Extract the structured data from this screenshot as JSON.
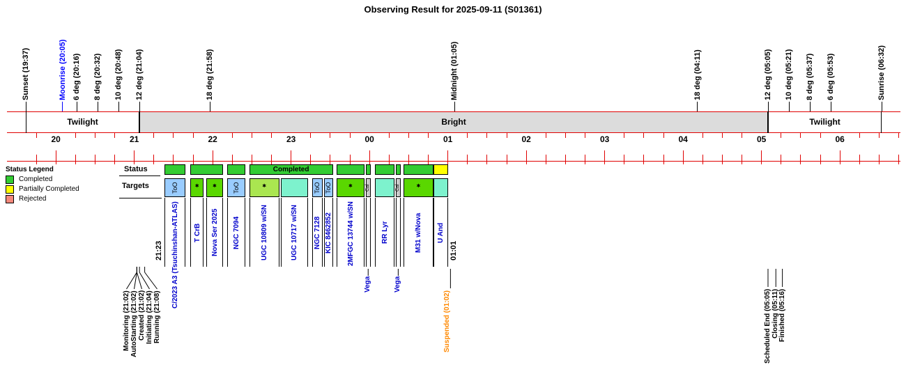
{
  "title": "Observing Result for 2025-09-11 (S01361)",
  "legend": {
    "title": "Status Legend",
    "items": [
      {
        "label": "Completed",
        "color": "#33cc33"
      },
      {
        "label": "Partially Completed",
        "color": "#ffff00"
      },
      {
        "label": "Rejected",
        "color": "#f4887b"
      }
    ]
  },
  "rows": {
    "status_label": "Status",
    "targets_label": "Targets"
  },
  "colors": {
    "ruler": "#e00000",
    "band_boundary": "#000000",
    "target_text": "#0000cc",
    "event_text": "#000000",
    "suspended_text": "#ff8800",
    "moonrise_text": "#0000ff"
  },
  "chart_data": {
    "type": "timeline",
    "time_axis": {
      "start": "19:37",
      "end": "06:32",
      "hour_labels": [
        "20",
        "21",
        "22",
        "23",
        "00",
        "01",
        "02",
        "03",
        "04",
        "05",
        "06"
      ],
      "minor_tick_minutes": 15
    },
    "sky_events": [
      {
        "label": "Sunset (19:37)",
        "time": "19:37",
        "color": "#000000"
      },
      {
        "label": "Moonrise (20:05)",
        "time": "20:05",
        "color": "#0000ff"
      },
      {
        "label": "6 deg (20:16)",
        "time": "20:16",
        "color": "#000000"
      },
      {
        "label": "8 deg (20:32)",
        "time": "20:32",
        "color": "#000000"
      },
      {
        "label": "10 deg (20:48)",
        "time": "20:48",
        "color": "#000000"
      },
      {
        "label": "12 deg (21:04)",
        "time": "21:04",
        "color": "#000000"
      },
      {
        "label": "18 deg (21:58)",
        "time": "21:58",
        "color": "#000000"
      },
      {
        "label": "Midnight (01:05)",
        "time": "01:05",
        "color": "#000000"
      },
      {
        "label": "18 deg (04:11)",
        "time": "04:11",
        "color": "#000000"
      },
      {
        "label": "12 deg (05:05)",
        "time": "05:05",
        "color": "#000000"
      },
      {
        "label": "10 deg (05:21)",
        "time": "05:21",
        "color": "#000000"
      },
      {
        "label": "8 deg (05:37)",
        "time": "05:37",
        "color": "#000000"
      },
      {
        "label": "6 deg (05:53)",
        "time": "05:53",
        "color": "#000000"
      },
      {
        "label": "Sunrise (06:32)",
        "time": "06:32",
        "color": "#000000"
      }
    ],
    "night_phases": [
      {
        "label": "Twilight",
        "start": "19:37",
        "end": "21:04",
        "fill": "#ffffff"
      },
      {
        "label": "Bright",
        "start": "21:04",
        "end": "05:05",
        "fill": "#dcdcdc"
      },
      {
        "label": "Twilight",
        "start": "05:05",
        "end": "06:32",
        "fill": "#ffffff"
      }
    ],
    "sequence": {
      "start_label": "21:23",
      "end_label": "01:01"
    },
    "status_segments": [
      {
        "start": "21:23",
        "end": "21:39",
        "color": "#33cc33",
        "label": ""
      },
      {
        "start": "21:43",
        "end": "22:08",
        "color": "#33cc33",
        "label": ""
      },
      {
        "start": "22:11",
        "end": "22:25",
        "color": "#33cc33",
        "label": ""
      },
      {
        "start": "22:28",
        "end": "23:32",
        "color": "#33cc33",
        "label": "Completed"
      },
      {
        "start": "23:35",
        "end": "23:56",
        "color": "#33cc33",
        "label": ""
      },
      {
        "start": "23:57",
        "end": "00:01",
        "color": "#33cc33",
        "label": ""
      },
      {
        "start": "00:04",
        "end": "00:19",
        "color": "#33cc33",
        "label": ""
      },
      {
        "start": "00:20",
        "end": "00:24",
        "color": "#33cc33",
        "label": ""
      },
      {
        "start": "00:26",
        "end": "00:49",
        "color": "#33cc33",
        "label": ""
      },
      {
        "start": "00:49",
        "end": "01:00",
        "color": "#ffff00",
        "label": ""
      }
    ],
    "targets": [
      {
        "name": "C/2023 A3 (Tsuchinshan-ATLAS)",
        "start": "21:23",
        "end": "21:39",
        "color": "#99ccff",
        "mark": "ToO"
      },
      {
        "name": "T CrB",
        "start": "21:43",
        "end": "21:53",
        "color": "#5ad700",
        "mark": "*"
      },
      {
        "name": "Nova Ser 2025",
        "start": "21:55",
        "end": "22:08",
        "color": "#5ad700",
        "mark": "*"
      },
      {
        "name": "NGC 7094",
        "start": "22:11",
        "end": "22:25",
        "color": "#99ccff",
        "mark": "ToO"
      },
      {
        "name": "UGC 10809 w/SN",
        "start": "22:28",
        "end": "22:51",
        "color": "#aae650",
        "mark": "*"
      },
      {
        "name": "UGC 10717 w/SN",
        "start": "22:52",
        "end": "23:13",
        "color": "#7df2cd",
        "mark": ""
      },
      {
        "name": "NGC 7128",
        "start": "23:16",
        "end": "23:24",
        "color": "#99ccff",
        "mark": "ToO"
      },
      {
        "name": "KIC 8462852",
        "start": "23:25",
        "end": "23:32",
        "color": "#99ccff",
        "mark": "ToO"
      },
      {
        "name": "2MFGC 13744 w/SN",
        "start": "23:35",
        "end": "23:56",
        "color": "#5ad700",
        "mark": "*"
      },
      {
        "name": "Vega",
        "start": "23:57",
        "end": "00:01",
        "color": "#cccccc",
        "mark": "Cal",
        "label_row": "low"
      },
      {
        "name": "RR Lyr",
        "start": "00:04",
        "end": "00:19",
        "color": "#7df2cd",
        "mark": ""
      },
      {
        "name": "Vega",
        "start": "00:20",
        "end": "00:24",
        "color": "#cccccc",
        "mark": "Cal",
        "label_row": "low"
      },
      {
        "name": "M31 w/Nova",
        "start": "00:26",
        "end": "00:49",
        "color": "#5ad700",
        "mark": "*"
      },
      {
        "name": "U And",
        "start": "00:49",
        "end": "01:00",
        "color": "#7df2cd",
        "mark": ""
      }
    ],
    "session_events_left": [
      {
        "label": "Monitoring (21:02)",
        "time": "21:02"
      },
      {
        "label": "AutoStarting (21:02)",
        "time": "21:02"
      },
      {
        "label": "Created (21:02)",
        "time": "21:02"
      },
      {
        "label": "Initiating (21:04)",
        "time": "21:04"
      },
      {
        "label": "Running (21:08)",
        "time": "21:08"
      }
    ],
    "suspended_event": {
      "label": "Suspended (01:02)",
      "time": "01:02",
      "color": "#ff8800"
    },
    "session_events_right": [
      {
        "label": "Scheduled End (05:05)",
        "time": "05:05"
      },
      {
        "label": "Closing (05:11)",
        "time": "05:11"
      },
      {
        "label": "Finished (05:16)",
        "time": "05:16"
      }
    ]
  }
}
